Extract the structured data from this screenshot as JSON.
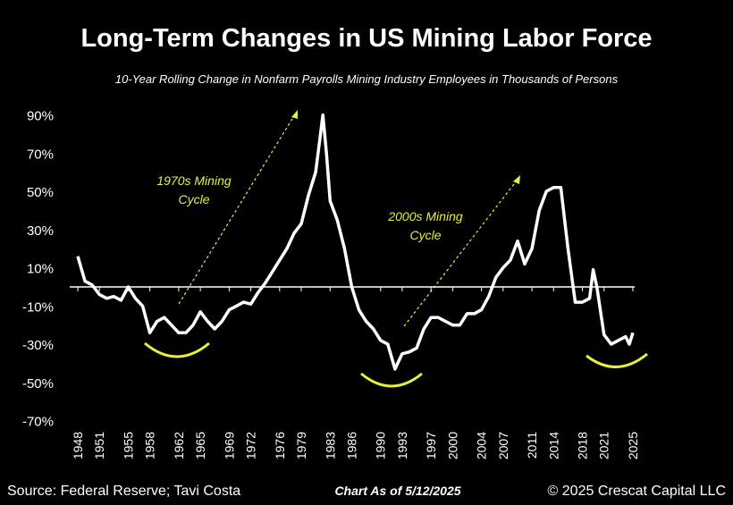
{
  "chart_data": {
    "type": "line",
    "title": "Long-Term Changes in US Mining Labor Force",
    "subtitle": "10-Year Rolling Change in Nonfarm Payrolls Mining Industry Employees in Thousands of Persons",
    "color": "#ffffff",
    "x": [
      1948,
      1949,
      1950,
      1951,
      1952,
      1953,
      1954,
      1955,
      1956,
      1957,
      1958,
      1959,
      1960,
      1961,
      1962,
      1963,
      1964,
      1965,
      1966,
      1967,
      1968,
      1969,
      1970,
      1971,
      1972,
      1973,
      1974,
      1975,
      1976,
      1977,
      1978,
      1979,
      1980,
      1981,
      1981.5,
      1982,
      1982.5,
      1983,
      1984,
      1985,
      1986,
      1987,
      1988,
      1989,
      1990,
      1991,
      1992,
      1993,
      1994,
      1995,
      1996,
      1997,
      1998,
      1999,
      2000,
      2001,
      2002,
      2003,
      2004,
      2005,
      2006,
      2007,
      2008,
      2009,
      2010,
      2011,
      2012,
      2013,
      2014,
      2015,
      2016,
      2017,
      2018,
      2019,
      2019.5,
      2020,
      2021,
      2022,
      2023,
      2024,
      2024.5,
      2025
    ],
    "values": [
      16,
      3,
      1,
      -4,
      -6,
      -5,
      -7,
      0,
      -6,
      -10,
      -24,
      -18,
      -16,
      -20,
      -24,
      -24,
      -20,
      -13,
      -18,
      -22,
      -18,
      -12,
      -10,
      -8,
      -9,
      -3,
      2,
      8,
      14,
      20,
      28,
      33,
      48,
      60,
      75,
      90,
      70,
      45,
      35,
      20,
      0,
      -12,
      -18,
      -22,
      -28,
      -30,
      -43,
      -35,
      -34,
      -32,
      -22,
      -16,
      -16,
      -18,
      -20,
      -20,
      -14,
      -14,
      -12,
      -5,
      5,
      10,
      14,
      24,
      12,
      20,
      40,
      50,
      52,
      52,
      20,
      -8,
      -8,
      -6,
      9,
      0,
      -25,
      -30,
      -28,
      -26,
      -30,
      -24
    ],
    "xlim": [
      1948,
      2025
    ],
    "xticks": [
      1948,
      1951,
      1955,
      1958,
      1962,
      1965,
      1969,
      1972,
      1976,
      1979,
      1983,
      1986,
      1990,
      1993,
      1997,
      2000,
      2004,
      2007,
      2011,
      2014,
      2018,
      2021,
      2025
    ],
    "ylim": [
      -70,
      90
    ],
    "yticks": [
      {
        "value": -70,
        "label": "-70%"
      },
      {
        "value": -50,
        "label": "-50%"
      },
      {
        "value": -30,
        "label": "-30%"
      },
      {
        "value": -10,
        "label": "-10%"
      },
      {
        "value": 10,
        "label": "10%"
      },
      {
        "value": 30,
        "label": "30%"
      },
      {
        "value": 50,
        "label": "50%"
      },
      {
        "value": 70,
        "label": "70%"
      },
      {
        "value": 90,
        "label": "90%"
      }
    ],
    "annotations": [
      {
        "lines": [
          "1970s Mining",
          "Cycle"
        ]
      },
      {
        "lines": [
          "2000s Mining",
          "Cycle"
        ]
      }
    ],
    "source": "Source: Federal Reserve; Tavi Costa",
    "date_note": "Chart As of 5/12/2025",
    "copyright": "© 2025 Crescat Capital LLC"
  }
}
